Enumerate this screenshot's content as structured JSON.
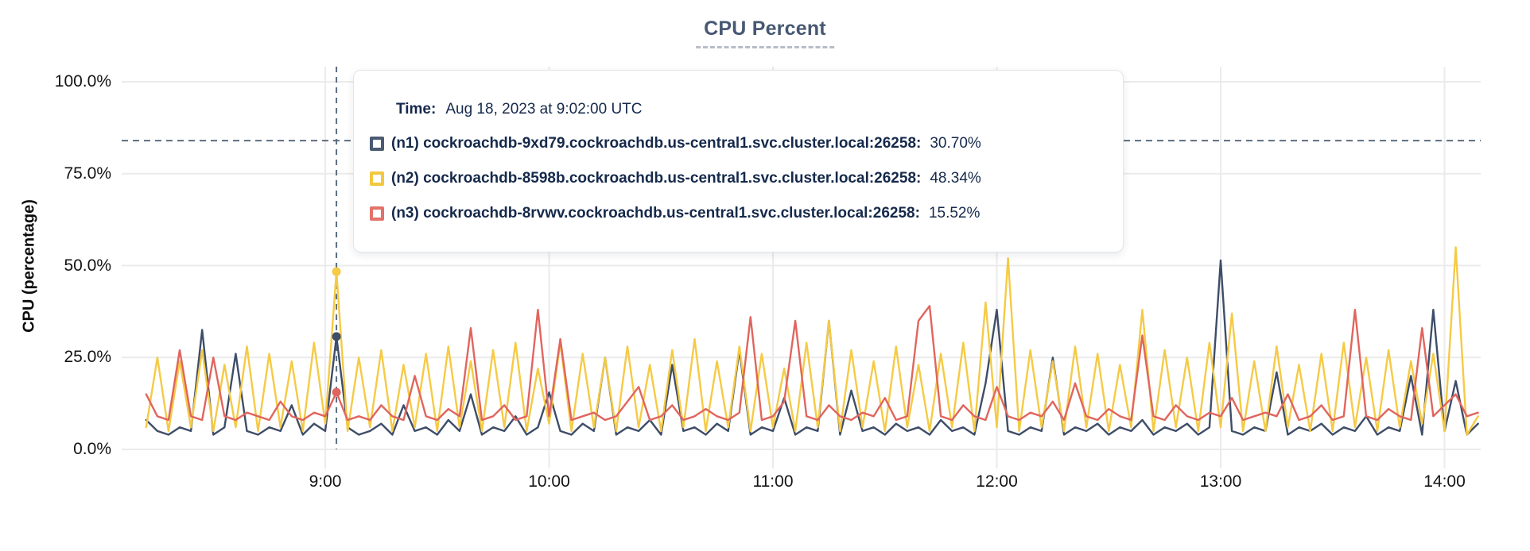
{
  "title": "CPU Percent",
  "y_axis_title": "CPU (percentage)",
  "tooltip": {
    "time_label": "Time:",
    "time_value": "Aug 18, 2023 at 9:02:00 UTC",
    "rows": [
      {
        "label": "(n1) cockroachdb-9xd79.cockroachdb.us-central1.svc.cluster.local:26258:",
        "value": "30.70%",
        "color": "#4c5a72"
      },
      {
        "label": "(n2) cockroachdb-8598b.cockroachdb.us-central1.svc.cluster.local:26258:",
        "value": "48.34%",
        "color": "#f2c83f"
      },
      {
        "label": "(n3) cockroachdb-8rvwv.cockroachdb.us-central1.svc.cluster.local:26258:",
        "value": "15.52%",
        "color": "#e2726a"
      }
    ]
  },
  "colors": {
    "grid": "#ebebeb",
    "guide_dashed": "#5c6e80",
    "title": "#475872",
    "tooltip_text": "#15294b"
  },
  "chart_data": {
    "type": "line",
    "title": "CPU Percent",
    "xlabel": "",
    "ylabel": "CPU (percentage)",
    "ylim": [
      0,
      100
    ],
    "xlim_hours": [
      8.2,
      14.15
    ],
    "grid": true,
    "legend_position": "tooltip",
    "y_ticks": [
      {
        "label": "0.0%",
        "value": 0
      },
      {
        "label": "25.0%",
        "value": 25
      },
      {
        "label": "50.0%",
        "value": 50
      },
      {
        "label": "75.0%",
        "value": 75
      },
      {
        "label": "100.0%",
        "value": 100
      }
    ],
    "x_ticks": [
      {
        "label": "9:00",
        "value": 9
      },
      {
        "label": "10:00",
        "value": 10
      },
      {
        "label": "11:00",
        "value": 11
      },
      {
        "label": "12:00",
        "value": 12
      },
      {
        "label": "13:00",
        "value": 13
      },
      {
        "label": "14:00",
        "value": 14
      }
    ],
    "threshold_percent": 84,
    "hover": {
      "x_hour": 9.05,
      "time": "Aug 18, 2023 at 9:02:00 UTC",
      "values": [
        30.7,
        48.34,
        15.52
      ]
    },
    "x_start_hour": 8.2,
    "x_step_hour": 0.05,
    "series": [
      {
        "name": "(n1) cockroachdb-9xd79.cockroachdb.us-central1.svc.cluster.local:26258",
        "color": "#3e4d68",
        "hover_value": 30.7,
        "values": [
          8,
          5,
          4,
          6,
          5,
          32.5,
          4,
          6,
          26,
          5,
          4,
          6,
          5,
          12,
          4,
          7,
          5,
          30.7,
          6,
          4,
          5,
          7,
          4,
          12,
          5,
          6,
          4,
          8,
          5,
          15,
          4,
          6,
          5,
          9,
          4,
          6,
          15.5,
          5,
          4,
          7,
          5,
          25,
          4,
          6,
          5,
          8,
          4,
          23,
          5,
          6,
          4,
          7,
          5,
          27,
          4,
          6,
          5,
          14,
          4,
          6,
          5,
          35,
          4,
          16,
          5,
          6,
          4,
          7,
          5,
          6,
          4,
          8,
          5,
          6,
          4,
          18,
          38,
          5,
          4,
          6,
          5,
          25,
          4,
          6,
          5,
          7,
          4,
          6,
          5,
          8,
          4,
          6,
          5,
          7,
          4,
          6,
          51.4,
          5,
          4,
          6,
          5,
          21,
          4,
          6,
          5,
          7,
          4,
          6,
          5,
          9,
          4,
          6,
          5,
          20,
          4,
          38,
          5,
          18.6,
          4,
          7
        ]
      },
      {
        "name": "(n2) cockroachdb-8598b.cockroachdb.us-central1.svc.cluster.local:26258",
        "color": "#f5ca45",
        "hover_value": 48.34,
        "values": [
          6,
          25,
          5,
          24,
          6,
          27,
          5,
          23,
          6,
          28,
          5,
          26,
          6,
          24,
          5,
          29,
          7,
          48.3,
          5,
          25,
          6,
          27,
          5,
          23,
          6,
          26,
          5,
          28,
          6,
          24,
          5,
          27,
          6,
          29,
          5,
          22,
          7,
          29,
          5,
          26,
          6,
          25,
          5,
          28,
          6,
          23,
          5,
          27,
          6,
          30,
          5,
          24,
          6,
          28,
          5,
          26,
          6,
          22,
          5,
          29,
          6,
          35,
          5,
          27,
          6,
          24,
          5,
          28,
          6,
          23,
          5,
          26,
          6,
          29,
          5,
          40,
          6,
          52,
          5,
          27,
          6,
          24,
          5,
          28,
          6,
          26,
          5,
          23,
          6,
          38,
          5,
          27,
          6,
          25,
          5,
          29,
          6,
          37,
          5,
          24,
          5,
          28,
          6,
          23,
          5,
          26,
          5,
          29,
          6,
          25,
          5,
          27,
          6,
          24,
          7,
          26,
          5,
          55,
          4,
          9
        ]
      },
      {
        "name": "(n3) cockroachdb-8rvwv.cockroachdb.us-central1.svc.cluster.local:26258",
        "color": "#e0655e",
        "hover_value": 15.52,
        "values": [
          15,
          9,
          8,
          27,
          9,
          8,
          25,
          9,
          8,
          10,
          9,
          8,
          13,
          9,
          8,
          10,
          9,
          15.5,
          8,
          9,
          8,
          12,
          9,
          8,
          20,
          9,
          8,
          11,
          9,
          33,
          8,
          9,
          12,
          8,
          9,
          38,
          9,
          30,
          8,
          9,
          10,
          8,
          9,
          13,
          17,
          8,
          9,
          12,
          8,
          9,
          11,
          9,
          8,
          10,
          36,
          8,
          9,
          13,
          35,
          9,
          8,
          12,
          9,
          8,
          10,
          9,
          14,
          8,
          9,
          35,
          39,
          9,
          8,
          12,
          9,
          8,
          17,
          9,
          8,
          10,
          9,
          13,
          8,
          18,
          9,
          8,
          11,
          9,
          8,
          31,
          9,
          8,
          12,
          9,
          8,
          10,
          9,
          14,
          8,
          9,
          10,
          9,
          15,
          8,
          9,
          12,
          8,
          9,
          38,
          9,
          8,
          11,
          9,
          8,
          33,
          9,
          12,
          15,
          9,
          10
        ]
      }
    ]
  }
}
